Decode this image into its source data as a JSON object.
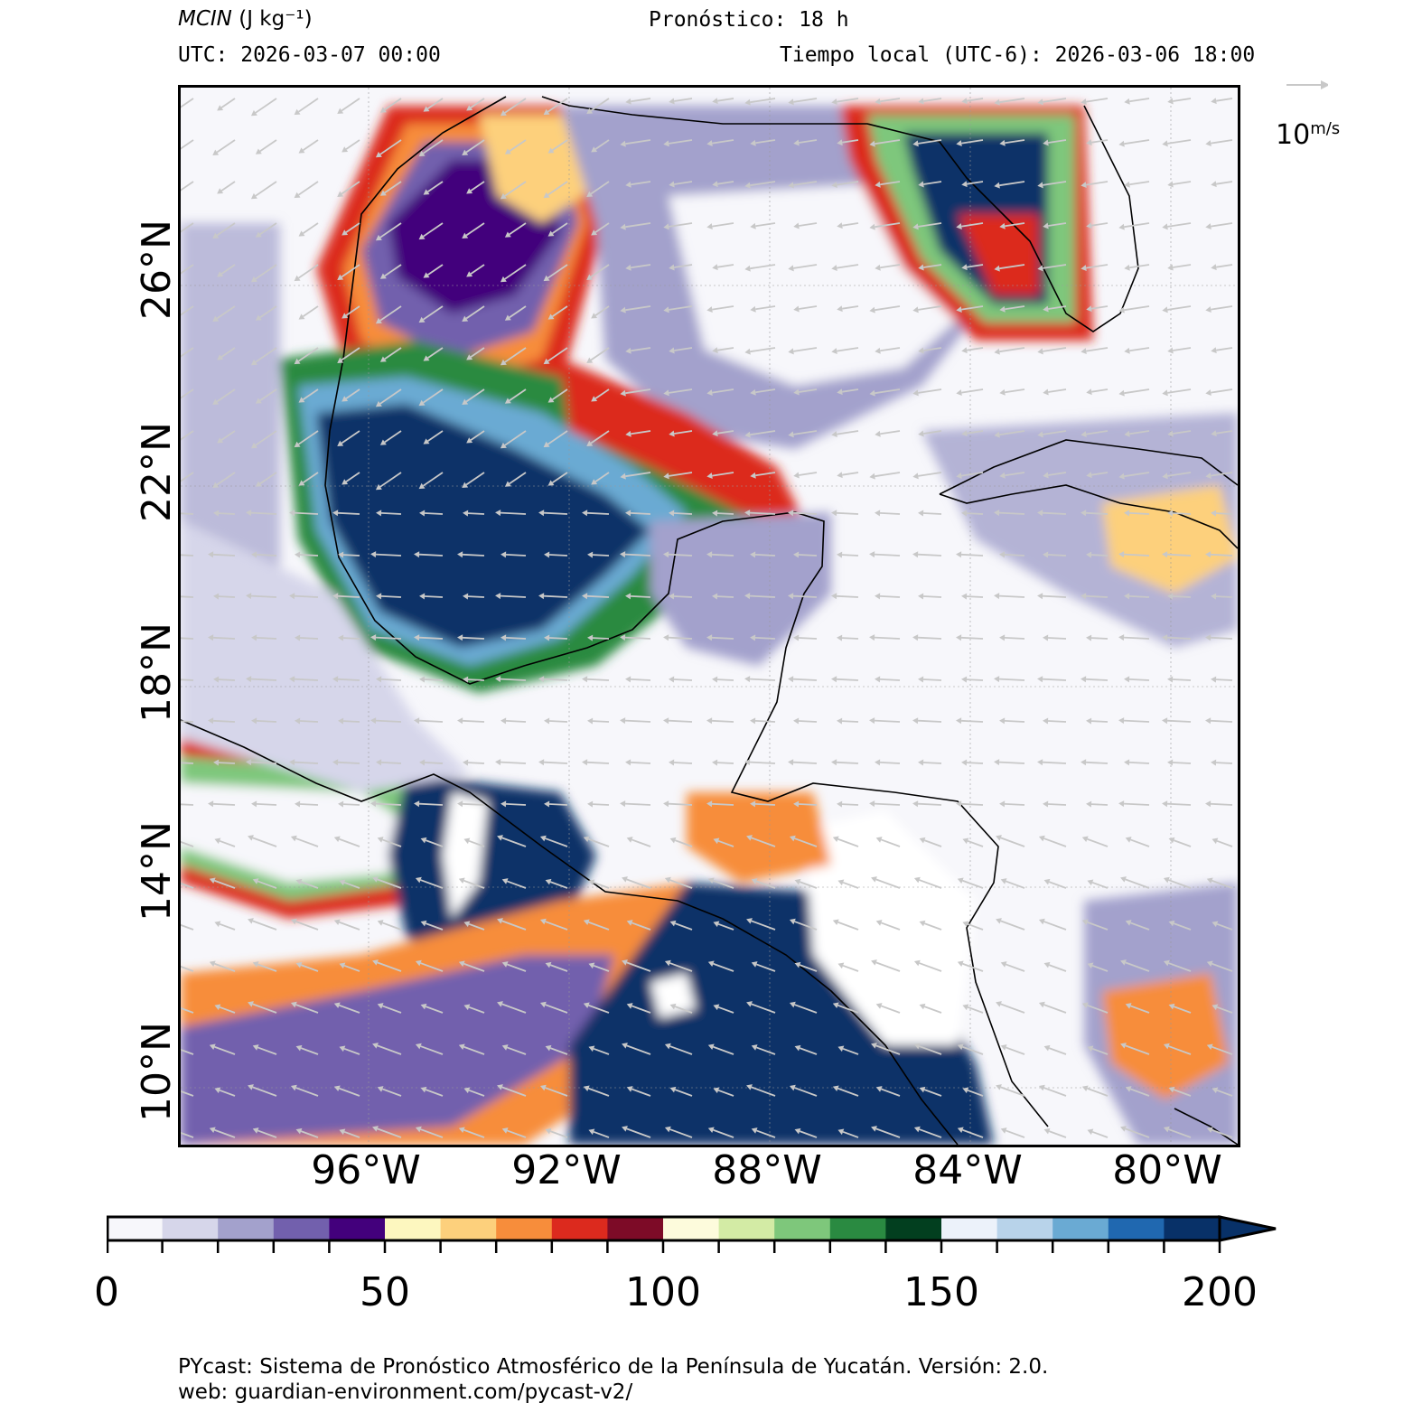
{
  "header": {
    "variable_label": "MCIN",
    "variable_units": "(J kg⁻¹)",
    "forecast": "Pronóstico: 18 h",
    "utc": "UTC:  2026-03-07 00:00",
    "local_time": "Tiempo local (UTC-6): 2026-03-06 18:00"
  },
  "map": {
    "lat_labels": [
      "26°N",
      "22°N",
      "18°N",
      "14°N",
      "10°N"
    ],
    "lon_labels": [
      "96°W",
      "92°W",
      "88°W",
      "84°W",
      "80°W"
    ],
    "extent": {
      "lon_min": -99.5,
      "lon_max": -78.2,
      "lat_min": 8.2,
      "lat_max": 29.5
    },
    "wind_reference": {
      "value": "10",
      "units": "m/s"
    },
    "wind_color": "#c8c8c8",
    "coast_color": "#000000"
  },
  "colorbar": {
    "ticks": [
      "0",
      "50",
      "100",
      "150",
      "200"
    ],
    "min": 0,
    "max": 200,
    "step": 10,
    "extend": "max",
    "colors": [
      "#f7f7fb",
      "#d6d6ea",
      "#a3a1cc",
      "#7260ad",
      "#43007c",
      "#fdf7bf",
      "#fdd07c",
      "#f78d3b",
      "#dc2a1e",
      "#7d0b27",
      "#fdfbdc",
      "#d3eba5",
      "#7ec77b",
      "#2a8a41",
      "#023f1f",
      "#ecf2fa",
      "#b8d3ea",
      "#6aaad3",
      "#2068b0",
      "#083168"
    ]
  },
  "footer": {
    "line1": "PYcast: Sistema de Pronóstico Atmosférico de la Península de Yucatán. Versión: 2.0.",
    "line2": "web: guardian-environment.com/pycast-v2/"
  }
}
